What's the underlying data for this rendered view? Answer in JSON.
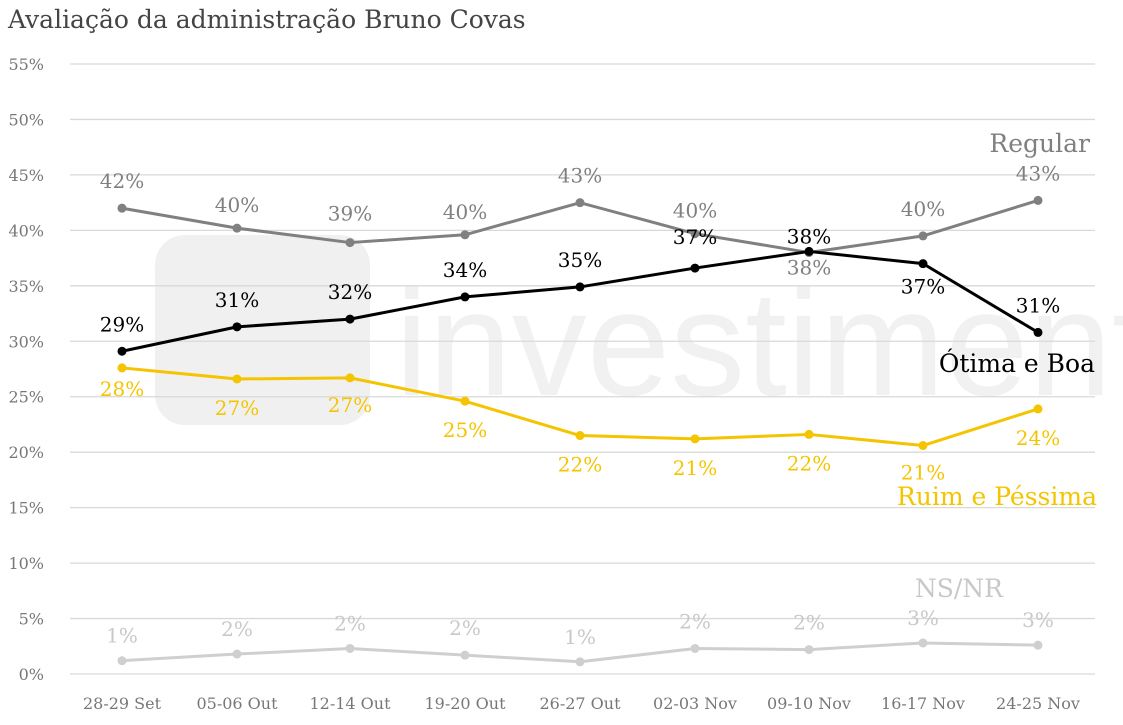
{
  "chart_data": {
    "type": "line",
    "title": "Avaliação da administração Bruno Covas",
    "categories": [
      "28-29 Set",
      "05-06 Out",
      "12-14 Out",
      "19-20 Out",
      "26-27 Out",
      "02-03 Nov",
      "09-10 Nov",
      "16-17 Nov",
      "24-25 Nov"
    ],
    "ylim": [
      0,
      55
    ],
    "yticks": [
      "0%",
      "5%",
      "10%",
      "15%",
      "20%",
      "25%",
      "30%",
      "35%",
      "40%",
      "45%",
      "50%",
      "55%"
    ],
    "grid": true,
    "legend": "inline labels at right end",
    "series": [
      {
        "name": "Regular",
        "color": "#808080",
        "values": [
          42.0,
          40.2,
          38.9,
          39.6,
          42.5,
          39.7,
          38.0,
          39.5,
          42.7
        ],
        "labels": [
          "42%",
          "40%",
          "39%",
          "40%",
          "43%",
          "40%",
          "38%",
          "40%",
          "43%"
        ]
      },
      {
        "name": "Ótima e Boa",
        "color": "#000000",
        "values": [
          29.1,
          31.3,
          32.0,
          34.0,
          34.9,
          36.6,
          38.1,
          37.0,
          30.8
        ],
        "labels": [
          "29%",
          "31%",
          "32%",
          "34%",
          "35%",
          "37%",
          "38%",
          "37%",
          "31%"
        ]
      },
      {
        "name": "Ruim e Péssima",
        "color": "#F5C400",
        "values": [
          27.6,
          26.6,
          26.7,
          24.6,
          21.5,
          21.2,
          21.6,
          20.6,
          23.9
        ],
        "labels": [
          "28%",
          "27%",
          "27%",
          "25%",
          "22%",
          "21%",
          "22%",
          "21%",
          "24%"
        ]
      },
      {
        "name": "NS/NR",
        "color": "#CFCFCF",
        "values": [
          1.2,
          1.8,
          2.3,
          1.7,
          1.1,
          2.3,
          2.2,
          2.8,
          2.6
        ],
        "labels": [
          "1%",
          "2%",
          "2%",
          "2%",
          "1%",
          "2%",
          "2%",
          "3%",
          "3%"
        ]
      }
    ],
    "watermark": "XP investimentos"
  }
}
